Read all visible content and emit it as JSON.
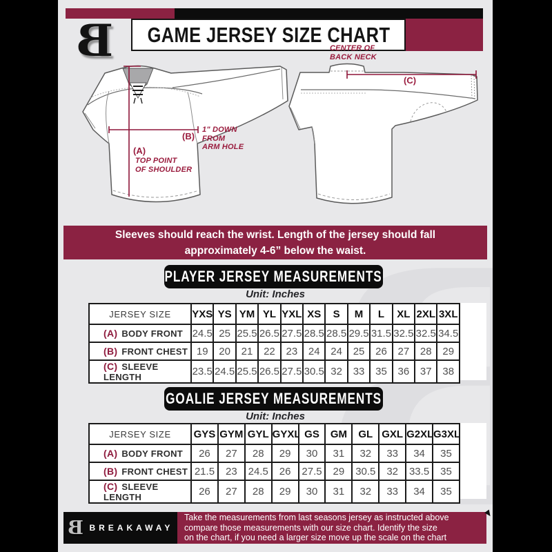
{
  "header": {
    "title": "GAME JERSEY SIZE CHART",
    "logo_letter": "B"
  },
  "diagram": {
    "front": {
      "key_a": "(A)",
      "note_a": [
        "TOP POINT",
        "OF SHOULDER"
      ],
      "key_b": "(B)",
      "note_b": [
        "1\" DOWN",
        "FROM",
        "ARM HOLE"
      ]
    },
    "back": {
      "key_c": "(C)",
      "note_c": [
        "CENTER OF",
        "BACK NECK"
      ]
    }
  },
  "banner": {
    "line1": "Sleeves should reach the wrist. Length of the jersey should fall",
    "line2": "approximately 4-6” below the waist."
  },
  "player": {
    "title": "PLAYER JERSEY MEASUREMENTS",
    "unit": "Unit: Inches",
    "corner": "JERSEY SIZE",
    "sizes": [
      "YXS",
      "YS",
      "YM",
      "YL",
      "YXL",
      "XS",
      "S",
      "M",
      "L",
      "XL",
      "2XL",
      "3XL"
    ],
    "rows": [
      {
        "key": "(A)",
        "label": "BODY FRONT",
        "values": [
          "24.5",
          "25",
          "25.5",
          "26.5",
          "27.5",
          "28.5",
          "28.5",
          "29.5",
          "31.5",
          "32.5",
          "32.5",
          "34.5"
        ]
      },
      {
        "key": "(B)",
        "label": "FRONT CHEST",
        "values": [
          "19",
          "20",
          "21",
          "22",
          "23",
          "24",
          "24",
          "25",
          "26",
          "27",
          "28",
          "29"
        ]
      },
      {
        "key": "(C)",
        "label": "SLEEVE LENGTH",
        "values": [
          "23.5",
          "24.5",
          "25.5",
          "26.5",
          "27.5",
          "30.5",
          "32",
          "33",
          "35",
          "36",
          "37",
          "38"
        ]
      }
    ]
  },
  "goalie": {
    "title": "GOALIE JERSEY MEASUREMENTS",
    "unit": "Unit: Inches",
    "corner": "JERSEY SIZE",
    "sizes": [
      "GYS",
      "GYM",
      "GYL",
      "GYXL",
      "GS",
      "GM",
      "GL",
      "GXL",
      "G2XL",
      "G3XL"
    ],
    "rows": [
      {
        "key": "(A)",
        "label": "BODY FRONT",
        "values": [
          "26",
          "27",
          "28",
          "29",
          "30",
          "31",
          "32",
          "33",
          "34",
          "35"
        ]
      },
      {
        "key": "(B)",
        "label": "FRONT CHEST",
        "values": [
          "21.5",
          "23",
          "24.5",
          "26",
          "27.5",
          "29",
          "30.5",
          "32",
          "33.5",
          "35"
        ]
      },
      {
        "key": "(C)",
        "label": "SLEEVE LENGTH",
        "values": [
          "26",
          "27",
          "28",
          "29",
          "30",
          "31",
          "32",
          "33",
          "34",
          "35"
        ]
      }
    ]
  },
  "footer": {
    "brand": "BREAKAWAY",
    "logo_letter": "B",
    "lines": [
      "Take the measurements from last seasons jersey as instructed above",
      "compare those measurements  with our size chart. Identify the size",
      "on the chart, if you need a larger size move up the scale on the chart"
    ]
  },
  "colors": {
    "maroon": "#8b2242",
    "black": "#0c0c0c",
    "annotation": "#9a1c3e",
    "card_bg": "#e8e8ea"
  }
}
